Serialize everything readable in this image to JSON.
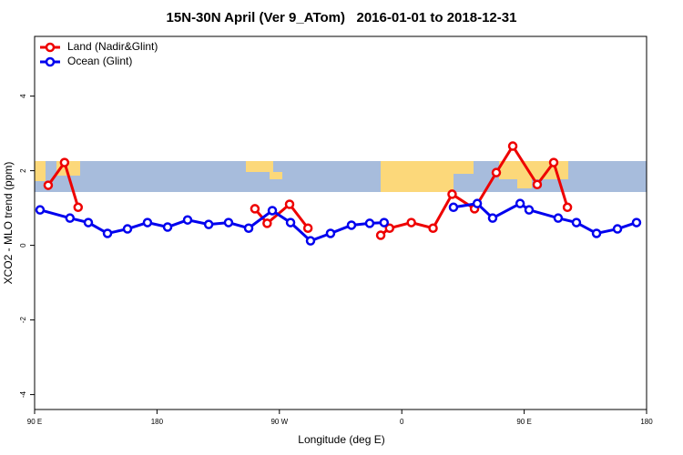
{
  "chart_data": {
    "type": "line",
    "title": "15N-30N April (Ver 9_ATom)   2016-01-01 to 2018-12-31",
    "x_label": "Longitude (deg E)",
    "y_label": "XCO2 - MLO trend (ppm)",
    "xlim": [
      90,
      540
    ],
    "xticks": [
      {
        "value": 90,
        "label": "90 E"
      },
      180,
      {
        "value": 270,
        "label": "90 W"
      },
      {
        "value": 360,
        "label": "0"
      },
      {
        "value": 450,
        "label": "90 E"
      },
      {
        "value": 540,
        "label": "180"
      }
    ],
    "ylim": [
      -4.4,
      5.6
    ],
    "yticks": [
      -4,
      -2,
      0,
      2,
      4
    ],
    "legend": "top-left",
    "series": [
      {
        "name": "Land (Nadir&Glint)",
        "color": "#ee0000",
        "x": [
          100,
          112,
          122,
          null,
          252,
          261,
          277.5,
          291,
          null,
          344.5,
          351,
          367,
          383,
          397,
          413.5,
          429.5,
          441.6,
          459.6,
          471.7,
          481.8
        ],
        "values": [
          1.61,
          2.22,
          1.02,
          null,
          0.98,
          0.59,
          1.1,
          0.46,
          null,
          0.27,
          0.46,
          0.61,
          0.46,
          1.37,
          0.98,
          1.95,
          2.66,
          1.63,
          2.22,
          1.02
        ]
      },
      {
        "name": "Ocean (Glint)",
        "color": "#0000ee",
        "x": [
          94,
          116,
          129.5,
          143.6,
          158.3,
          173,
          187.8,
          202.5,
          218,
          232.6,
          247.4,
          264.8,
          278.2,
          292.9,
          307.6,
          323,
          336.4,
          347,
          null,
          398,
          415.5,
          426.8,
          447,
          453.6,
          475,
          488.4,
          503.2,
          518.6,
          532.6
        ],
        "values": [
          0.95,
          0.73,
          0.61,
          0.32,
          0.44,
          0.61,
          0.49,
          0.68,
          0.56,
          0.61,
          0.46,
          0.93,
          0.61,
          0.12,
          0.32,
          0.54,
          0.59,
          0.61,
          null,
          1.02,
          1.12,
          0.73,
          1.12,
          0.95,
          0.73,
          0.61,
          0.32,
          0.44,
          0.61
        ]
      }
    ]
  }
}
